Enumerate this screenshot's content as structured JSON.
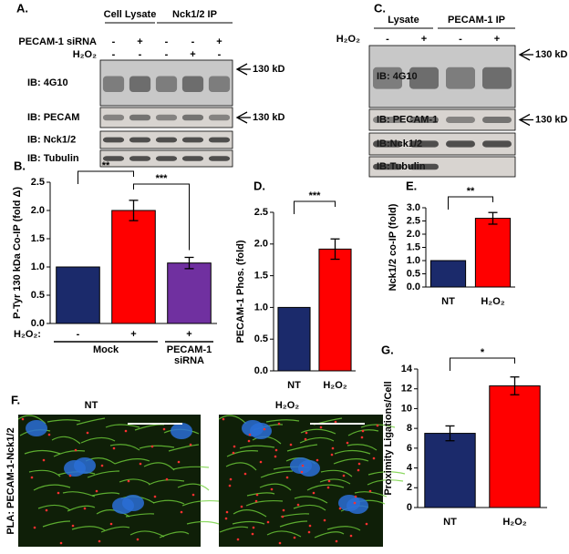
{
  "panel_labels": [
    "A.",
    "B.",
    "C.",
    "D.",
    "E.",
    "F.",
    "G."
  ],
  "blots": [
    {
      "headers": [
        "Cell Lysate",
        "Nck1/2 IP"
      ],
      "conditions": [
        {
          "label": "PECAM-1 siRNA",
          "lanes": [
            "-",
            "+",
            "-",
            "-",
            "+"
          ]
        },
        {
          "label": "H₂O₂",
          "lanes": [
            "-",
            "-",
            "-",
            "+",
            "-"
          ]
        }
      ],
      "rows": [
        "IB: 4G10",
        "IB: PECAM",
        "IB: Nck1/2",
        "IB: Tubulin"
      ],
      "marker": "130 kD"
    },
    {
      "headers": [
        "Lysate",
        "PECAM-1 IP"
      ],
      "conditions": [
        {
          "label": "H₂O₂",
          "lanes": [
            "-",
            "+",
            "-",
            "+"
          ]
        }
      ],
      "rows": [
        "IB: 4G10",
        "IB: PECAM-1",
        "IB:Nck1/2",
        "IB:Tubulin"
      ],
      "marker": "130 kD"
    }
  ],
  "micrographs": {
    "ylabel": "PLA: PECAM-1-Nck1/2",
    "labels": [
      "NT",
      "H₂O₂"
    ]
  },
  "chart_data": [
    {
      "type": "bar",
      "ylabel": "P-Tyr 130 kDa Co-IP  (fold Δ)",
      "xlabel": "H₂O₂:",
      "categories": [
        "-",
        "+",
        "+"
      ],
      "groups": [
        "Mock",
        "PECAM-1 siRNA"
      ],
      "values": [
        1.0,
        2.0,
        1.07
      ],
      "errors": [
        0,
        0.18,
        0.1
      ],
      "colors": [
        "#1b2a6b",
        "#ff0000",
        "#7030a0"
      ],
      "ylim": [
        0,
        2.5
      ],
      "yticks": [
        {
          "value": 0,
          "label": "0.0"
        },
        0.5,
        {
          "value": 1,
          "label": "1.0"
        },
        1.5,
        {
          "value": 2,
          "label": "2.0"
        },
        2.5
      ],
      "significance": [
        "**",
        "***"
      ]
    },
    {
      "type": "bar",
      "ylabel": "PECAM-1 Phos. (fold)",
      "categories": [
        "NT",
        "H₂O₂"
      ],
      "values": [
        1.0,
        1.92
      ],
      "errors": [
        0,
        0.16
      ],
      "colors": [
        "#1b2a6b",
        "#ff0000"
      ],
      "ylim": [
        0,
        2.5
      ],
      "yticks": [
        {
          "value": 0,
          "label": "0.0"
        },
        0.5,
        {
          "value": 1,
          "label": "1.0"
        },
        1.5,
        {
          "value": 2,
          "label": "2.0"
        },
        2.5
      ],
      "significance": [
        "***"
      ]
    },
    {
      "type": "bar",
      "ylabel": "Nck1/2 co-IP (fold)",
      "categories": [
        "NT",
        "H₂O₂"
      ],
      "values": [
        1.0,
        2.6
      ],
      "errors": [
        0,
        0.22
      ],
      "colors": [
        "#1b2a6b",
        "#ff0000"
      ],
      "ylim": [
        0,
        3
      ],
      "yticks": [
        {
          "value": 0,
          "label": "0.0"
        },
        0.5,
        {
          "value": 1,
          "label": "1.0"
        },
        1.5,
        {
          "value": 2,
          "label": "2.0"
        },
        2.5,
        {
          "value": 3,
          "label": "3.0"
        }
      ],
      "significance": [
        "**"
      ]
    },
    {
      "type": "bar",
      "ylabel": "Proximity Ligations/Cell",
      "categories": [
        "NT",
        "H₂O₂"
      ],
      "values": [
        7.5,
        12.3
      ],
      "errors": [
        0.75,
        0.9
      ],
      "colors": [
        "#1b2a6b",
        "#ff0000"
      ],
      "ylim": [
        0,
        14
      ],
      "yticks": [
        0,
        2,
        4,
        6,
        8,
        10,
        12,
        14
      ],
      "significance": [
        "*"
      ]
    }
  ]
}
